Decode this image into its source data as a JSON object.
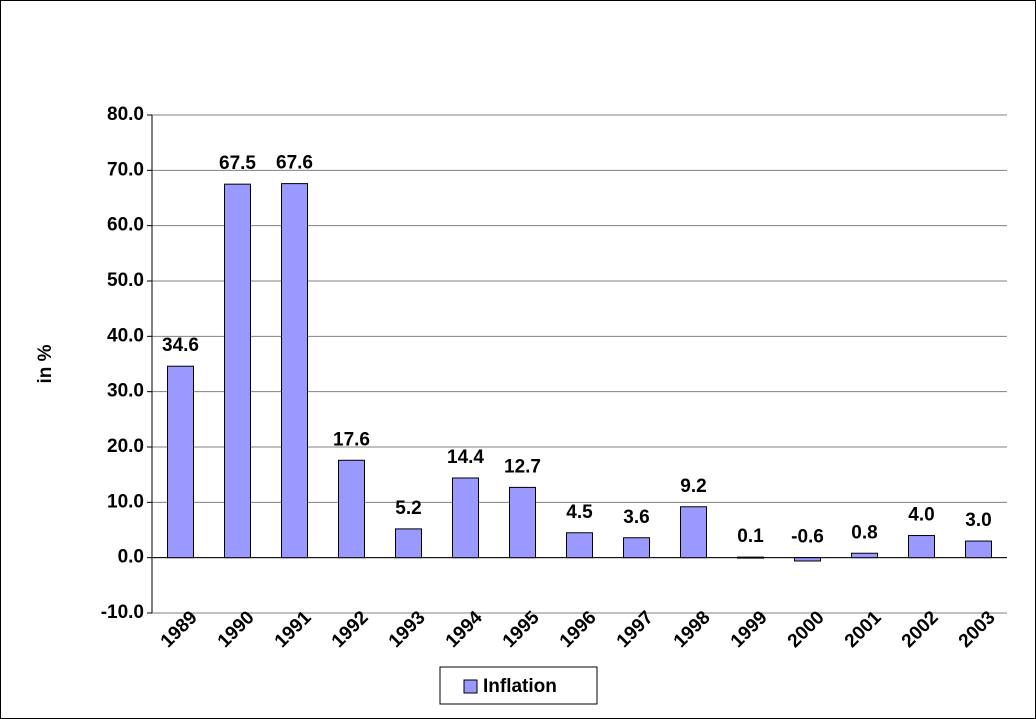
{
  "chart_data": {
    "type": "bar",
    "categories": [
      "1989",
      "1990",
      "1991",
      "1992",
      "1993",
      "1994",
      "1995",
      "1996",
      "1997",
      "1998",
      "1999",
      "2000",
      "2001",
      "2002",
      "2003"
    ],
    "values": [
      34.6,
      67.5,
      67.6,
      17.6,
      5.2,
      14.4,
      12.7,
      4.5,
      3.6,
      9.2,
      0.1,
      -0.6,
      0.8,
      4.0,
      3.0
    ],
    "value_labels": [
      "34.6",
      "67.5",
      "67.6",
      "17.6",
      "5.2",
      "14.4",
      "12.7",
      "4.5",
      "3.6",
      "9.2",
      "0.1",
      "-0.6",
      "0.8",
      "4.0",
      "3.0"
    ],
    "series_name": "Inflation",
    "color": "#9999ff",
    "y_label": "in %",
    "ylim": [
      -10,
      80
    ],
    "yticks": [
      {
        "value": -10,
        "label": "-10.0"
      },
      {
        "value": 0,
        "label": "0.0"
      },
      {
        "value": 10,
        "label": "10.0"
      },
      {
        "value": 20,
        "label": "20.0"
      },
      {
        "value": 30,
        "label": "30.0"
      },
      {
        "value": 40,
        "label": "40.0"
      },
      {
        "value": 50,
        "label": "50.0"
      },
      {
        "value": 60,
        "label": "60.0"
      },
      {
        "value": 70,
        "label": "70.0"
      },
      {
        "value": 80,
        "label": "80.0"
      }
    ],
    "grid": true,
    "legend": "bottom"
  }
}
